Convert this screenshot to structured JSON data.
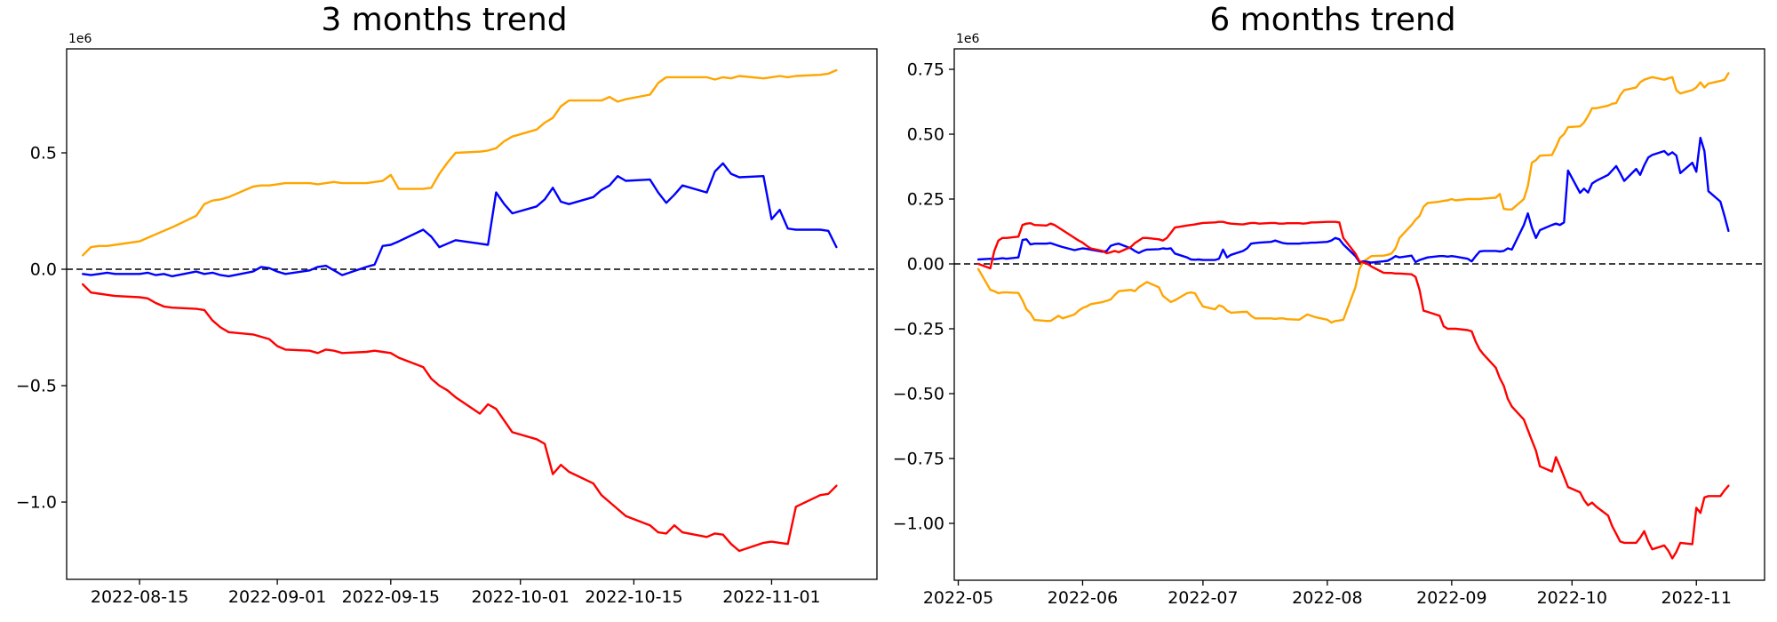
{
  "figure": {
    "background": "#ffffff",
    "text_color": "#000000",
    "axis_color": "#000000"
  },
  "chart_data": [
    {
      "type": "line",
      "title": "3 months trend",
      "xlabel": "",
      "ylabel": "",
      "y_offset_label": "1e6",
      "y_unit_multiplier": 1000000,
      "grid": false,
      "legend_position": "none",
      "zero_line": true,
      "zero_line_style": "dashed-black",
      "xlim": [
        "2022-08-06",
        "2022-11-14"
      ],
      "ylim": [
        -1.332,
        0.9466
      ],
      "x_ticks": [
        {
          "d": "2022-08-15",
          "label": "2022-08-15"
        },
        {
          "d": "2022-09-01",
          "label": "2022-09-01"
        },
        {
          "d": "2022-09-15",
          "label": "2022-09-15"
        },
        {
          "d": "2022-10-01",
          "label": "2022-10-01"
        },
        {
          "d": "2022-10-15",
          "label": "2022-10-15"
        },
        {
          "d": "2022-11-01",
          "label": "2022-11-01"
        }
      ],
      "y_ticks": [
        {
          "v": 0.5,
          "label": "0.5"
        },
        {
          "v": 0.0,
          "label": "0.0"
        },
        {
          "v": -0.5,
          "label": "−0.5"
        },
        {
          "v": -1.0,
          "label": "−1.0"
        }
      ],
      "x": [
        "2022-08-08",
        "2022-08-09",
        "2022-08-10",
        "2022-08-11",
        "2022-08-12",
        "2022-08-15",
        "2022-08-16",
        "2022-08-17",
        "2022-08-18",
        "2022-08-19",
        "2022-08-22",
        "2022-08-23",
        "2022-08-24",
        "2022-08-25",
        "2022-08-26",
        "2022-08-29",
        "2022-08-30",
        "2022-08-31",
        "2022-09-01",
        "2022-09-02",
        "2022-09-05",
        "2022-09-06",
        "2022-09-07",
        "2022-09-08",
        "2022-09-09",
        "2022-09-12",
        "2022-09-13",
        "2022-09-14",
        "2022-09-15",
        "2022-09-16",
        "2022-09-19",
        "2022-09-20",
        "2022-09-21",
        "2022-09-22",
        "2022-09-23",
        "2022-09-26",
        "2022-09-27",
        "2022-09-28",
        "2022-09-29",
        "2022-09-30",
        "2022-10-03",
        "2022-10-04",
        "2022-10-05",
        "2022-10-06",
        "2022-10-07",
        "2022-10-10",
        "2022-10-11",
        "2022-10-12",
        "2022-10-13",
        "2022-10-14",
        "2022-10-17",
        "2022-10-18",
        "2022-10-19",
        "2022-10-20",
        "2022-10-21",
        "2022-10-24",
        "2022-10-25",
        "2022-10-26",
        "2022-10-27",
        "2022-10-28",
        "2022-10-31",
        "2022-11-01",
        "2022-11-02",
        "2022-11-03",
        "2022-11-04",
        "2022-11-07",
        "2022-11-08",
        "2022-11-09"
      ],
      "series": [
        {
          "name": "orange",
          "color": "#ffa500",
          "values": [
            0.06,
            0.095,
            0.1,
            0.1,
            0.105,
            0.12,
            0.135,
            0.15,
            0.165,
            0.18,
            0.23,
            0.28,
            0.295,
            0.3,
            0.31,
            0.355,
            0.36,
            0.36,
            0.365,
            0.37,
            0.37,
            0.365,
            0.37,
            0.375,
            0.37,
            0.37,
            0.375,
            0.38,
            0.405,
            0.345,
            0.345,
            0.35,
            0.41,
            0.458,
            0.5,
            0.505,
            0.51,
            0.52,
            0.55,
            0.57,
            0.6,
            0.63,
            0.65,
            0.7,
            0.725,
            0.725,
            0.725,
            0.74,
            0.72,
            0.73,
            0.75,
            0.8,
            0.825,
            0.825,
            0.825,
            0.825,
            0.815,
            0.825,
            0.82,
            0.83,
            0.82,
            0.825,
            0.83,
            0.825,
            0.83,
            0.835,
            0.84,
            0.855
          ]
        },
        {
          "name": "blue",
          "color": "#0000ff",
          "values": [
            -0.02,
            -0.025,
            -0.02,
            -0.015,
            -0.02,
            -0.02,
            -0.015,
            -0.025,
            -0.02,
            -0.03,
            -0.01,
            -0.02,
            -0.015,
            -0.025,
            -0.03,
            -0.01,
            0.01,
            0.005,
            -0.01,
            -0.02,
            -0.005,
            0.01,
            0.015,
            -0.005,
            -0.025,
            0.01,
            0.02,
            0.1,
            0.105,
            0.12,
            0.17,
            0.14,
            0.095,
            0.11,
            0.125,
            0.11,
            0.105,
            0.33,
            0.28,
            0.24,
            0.27,
            0.3,
            0.35,
            0.29,
            0.28,
            0.31,
            0.34,
            0.36,
            0.4,
            0.38,
            0.385,
            0.33,
            0.285,
            0.32,
            0.36,
            0.33,
            0.42,
            0.455,
            0.41,
            0.395,
            0.4,
            0.215,
            0.255,
            0.175,
            0.17,
            0.17,
            0.165,
            0.095
          ]
        },
        {
          "name": "red",
          "color": "#ff0000",
          "values": [
            -0.065,
            -0.1,
            -0.105,
            -0.11,
            -0.115,
            -0.12,
            -0.125,
            -0.145,
            -0.16,
            -0.165,
            -0.17,
            -0.175,
            -0.22,
            -0.25,
            -0.27,
            -0.28,
            -0.29,
            -0.3,
            -0.33,
            -0.345,
            -0.35,
            -0.36,
            -0.345,
            -0.35,
            -0.36,
            -0.355,
            -0.35,
            -0.355,
            -0.36,
            -0.38,
            -0.42,
            -0.47,
            -0.5,
            -0.52,
            -0.55,
            -0.62,
            -0.58,
            -0.6,
            -0.65,
            -0.7,
            -0.73,
            -0.75,
            -0.88,
            -0.84,
            -0.87,
            -0.92,
            -0.97,
            -1.0,
            -1.03,
            -1.06,
            -1.1,
            -1.13,
            -1.135,
            -1.1,
            -1.13,
            -1.15,
            -1.135,
            -1.14,
            -1.18,
            -1.21,
            -1.175,
            -1.17,
            -1.175,
            -1.18,
            -1.02,
            -0.97,
            -0.965,
            -0.93
          ]
        }
      ]
    },
    {
      "type": "line",
      "title": "6 months trend",
      "xlabel": "",
      "ylabel": "",
      "y_offset_label": "1e6",
      "y_unit_multiplier": 1000000,
      "grid": false,
      "legend_position": "none",
      "zero_line": true,
      "zero_line_style": "dashed-black",
      "xlim": [
        "2022-04-30",
        "2022-11-18"
      ],
      "ylim": [
        -1.2192,
        0.8288
      ],
      "x_ticks": [
        {
          "d": "2022-05-01",
          "label": "2022-05"
        },
        {
          "d": "2022-06-01",
          "label": "2022-06"
        },
        {
          "d": "2022-07-01",
          "label": "2022-07"
        },
        {
          "d": "2022-08-01",
          "label": "2022-08"
        },
        {
          "d": "2022-09-01",
          "label": "2022-09"
        },
        {
          "d": "2022-10-01",
          "label": "2022-10"
        },
        {
          "d": "2022-11-01",
          "label": "2022-11"
        }
      ],
      "y_ticks": [
        {
          "v": 0.75,
          "label": "0.75"
        },
        {
          "v": 0.5,
          "label": "0.50"
        },
        {
          "v": 0.25,
          "label": "0.25"
        },
        {
          "v": 0.0,
          "label": "0.00"
        },
        {
          "v": -0.25,
          "label": "−0.25"
        },
        {
          "v": -0.5,
          "label": "−0.50"
        },
        {
          "v": -0.75,
          "label": "−0.75"
        },
        {
          "v": -1.0,
          "label": "−1.00"
        }
      ],
      "x": [
        "2022-05-06",
        "2022-05-09",
        "2022-05-10",
        "2022-05-11",
        "2022-05-12",
        "2022-05-13",
        "2022-05-16",
        "2022-05-17",
        "2022-05-18",
        "2022-05-19",
        "2022-05-20",
        "2022-05-23",
        "2022-05-24",
        "2022-05-25",
        "2022-05-26",
        "2022-05-27",
        "2022-05-30",
        "2022-05-31",
        "2022-06-01",
        "2022-06-02",
        "2022-06-03",
        "2022-06-06",
        "2022-06-07",
        "2022-06-08",
        "2022-06-09",
        "2022-06-10",
        "2022-06-13",
        "2022-06-14",
        "2022-06-15",
        "2022-06-16",
        "2022-06-17",
        "2022-06-20",
        "2022-06-21",
        "2022-06-22",
        "2022-06-23",
        "2022-06-24",
        "2022-06-27",
        "2022-06-28",
        "2022-06-29",
        "2022-06-30",
        "2022-07-01",
        "2022-07-04",
        "2022-07-05",
        "2022-07-06",
        "2022-07-07",
        "2022-07-08",
        "2022-07-11",
        "2022-07-12",
        "2022-07-13",
        "2022-07-14",
        "2022-07-15",
        "2022-07-18",
        "2022-07-19",
        "2022-07-20",
        "2022-07-21",
        "2022-07-22",
        "2022-07-25",
        "2022-07-26",
        "2022-07-27",
        "2022-07-28",
        "2022-07-29",
        "2022-08-01",
        "2022-08-02",
        "2022-08-03",
        "2022-08-04",
        "2022-08-05",
        "2022-08-08",
        "2022-08-09",
        "2022-08-10",
        "2022-08-11",
        "2022-08-12",
        "2022-08-15",
        "2022-08-16",
        "2022-08-17",
        "2022-08-18",
        "2022-08-19",
        "2022-08-22",
        "2022-08-23",
        "2022-08-24",
        "2022-08-25",
        "2022-08-26",
        "2022-08-29",
        "2022-08-30",
        "2022-08-31",
        "2022-09-01",
        "2022-09-02",
        "2022-09-05",
        "2022-09-06",
        "2022-09-07",
        "2022-09-08",
        "2022-09-09",
        "2022-09-12",
        "2022-09-13",
        "2022-09-14",
        "2022-09-15",
        "2022-09-16",
        "2022-09-19",
        "2022-09-20",
        "2022-09-21",
        "2022-09-22",
        "2022-09-23",
        "2022-09-26",
        "2022-09-27",
        "2022-09-28",
        "2022-09-29",
        "2022-09-30",
        "2022-10-03",
        "2022-10-04",
        "2022-10-05",
        "2022-10-06",
        "2022-10-07",
        "2022-10-10",
        "2022-10-11",
        "2022-10-12",
        "2022-10-13",
        "2022-10-14",
        "2022-10-17",
        "2022-10-18",
        "2022-10-19",
        "2022-10-20",
        "2022-10-21",
        "2022-10-24",
        "2022-10-25",
        "2022-10-26",
        "2022-10-27",
        "2022-10-28",
        "2022-10-31",
        "2022-11-01",
        "2022-11-02",
        "2022-11-03",
        "2022-11-04",
        "2022-11-07",
        "2022-11-08",
        "2022-11-09"
      ],
      "series": [
        {
          "name": "orange",
          "color": "#ffa500",
          "values": [
            -0.02,
            -0.1,
            -0.105,
            -0.113,
            -0.11,
            -0.11,
            -0.112,
            -0.14,
            -0.175,
            -0.19,
            -0.216,
            -0.22,
            -0.22,
            -0.21,
            -0.2,
            -0.21,
            -0.195,
            -0.18,
            -0.17,
            -0.164,
            -0.155,
            -0.147,
            -0.142,
            -0.137,
            -0.12,
            -0.105,
            -0.1,
            -0.105,
            -0.09,
            -0.08,
            -0.07,
            -0.09,
            -0.123,
            -0.135,
            -0.147,
            -0.14,
            -0.113,
            -0.11,
            -0.113,
            -0.14,
            -0.164,
            -0.175,
            -0.16,
            -0.165,
            -0.18,
            -0.188,
            -0.185,
            -0.185,
            -0.2,
            -0.21,
            -0.21,
            -0.21,
            -0.212,
            -0.21,
            -0.21,
            -0.213,
            -0.215,
            -0.205,
            -0.195,
            -0.2,
            -0.205,
            -0.215,
            -0.226,
            -0.22,
            -0.218,
            -0.215,
            -0.09,
            -0.02,
            0.01,
            0.02,
            0.03,
            0.032,
            0.035,
            0.04,
            0.06,
            0.1,
            0.15,
            0.17,
            0.185,
            0.22,
            0.235,
            0.24,
            0.243,
            0.245,
            0.25,
            0.245,
            0.25,
            0.25,
            0.25,
            0.25,
            0.252,
            0.255,
            0.27,
            0.212,
            0.21,
            0.21,
            0.25,
            0.3,
            0.39,
            0.4,
            0.417,
            0.42,
            0.45,
            0.486,
            0.5,
            0.527,
            0.53,
            0.545,
            0.57,
            0.6,
            0.6,
            0.61,
            0.617,
            0.62,
            0.65,
            0.67,
            0.68,
            0.7,
            0.71,
            0.715,
            0.72,
            0.71,
            0.715,
            0.72,
            0.67,
            0.657,
            0.67,
            0.68,
            0.7,
            0.68,
            0.695,
            0.705,
            0.71,
            0.735
          ]
        },
        {
          "name": "blue",
          "color": "#0000ff",
          "values": [
            0.017,
            0.02,
            0.018,
            0.02,
            0.022,
            0.02,
            0.025,
            0.092,
            0.095,
            0.075,
            0.078,
            0.078,
            0.08,
            0.075,
            0.07,
            0.065,
            0.053,
            0.057,
            0.06,
            0.058,
            0.055,
            0.047,
            0.05,
            0.07,
            0.075,
            0.078,
            0.06,
            0.05,
            0.042,
            0.05,
            0.055,
            0.057,
            0.06,
            0.058,
            0.06,
            0.04,
            0.025,
            0.017,
            0.016,
            0.017,
            0.015,
            0.015,
            0.02,
            0.055,
            0.025,
            0.035,
            0.05,
            0.06,
            0.078,
            0.08,
            0.082,
            0.085,
            0.09,
            0.085,
            0.08,
            0.078,
            0.078,
            0.08,
            0.08,
            0.082,
            0.082,
            0.085,
            0.09,
            0.1,
            0.095,
            0.075,
            0.03,
            0.007,
            0.01,
            0.008,
            0.005,
            0.01,
            0.012,
            0.02,
            0.03,
            0.025,
            0.032,
            0.007,
            0.015,
            0.02,
            0.025,
            0.03,
            0.03,
            0.028,
            0.03,
            0.028,
            0.02,
            0.01,
            0.03,
            0.048,
            0.05,
            0.05,
            0.048,
            0.05,
            0.06,
            0.055,
            0.15,
            0.195,
            0.14,
            0.1,
            0.13,
            0.15,
            0.155,
            0.15,
            0.16,
            0.36,
            0.274,
            0.29,
            0.275,
            0.31,
            0.32,
            0.343,
            0.36,
            0.377,
            0.35,
            0.32,
            0.366,
            0.343,
            0.38,
            0.41,
            0.42,
            0.435,
            0.42,
            0.43,
            0.418,
            0.35,
            0.39,
            0.355,
            0.486,
            0.435,
            0.28,
            0.24,
            0.185,
            0.127
          ]
        },
        {
          "name": "red",
          "color": "#ff0000",
          "values": [
            0.0,
            -0.017,
            0.05,
            0.09,
            0.1,
            0.1,
            0.105,
            0.15,
            0.155,
            0.157,
            0.15,
            0.148,
            0.155,
            0.15,
            0.14,
            0.13,
            0.1,
            0.09,
            0.082,
            0.07,
            0.06,
            0.05,
            0.041,
            0.045,
            0.05,
            0.045,
            0.065,
            0.08,
            0.09,
            0.1,
            0.1,
            0.095,
            0.09,
            0.1,
            0.12,
            0.14,
            0.148,
            0.15,
            0.152,
            0.155,
            0.158,
            0.16,
            0.162,
            0.162,
            0.158,
            0.155,
            0.152,
            0.155,
            0.158,
            0.158,
            0.155,
            0.158,
            0.158,
            0.155,
            0.155,
            0.157,
            0.157,
            0.155,
            0.157,
            0.16,
            0.16,
            0.162,
            0.162,
            0.162,
            0.16,
            0.1,
            0.04,
            0.01,
            0.005,
            0.0,
            -0.01,
            -0.034,
            -0.035,
            -0.035,
            -0.037,
            -0.037,
            -0.04,
            -0.05,
            -0.1,
            -0.18,
            -0.185,
            -0.2,
            -0.24,
            -0.25,
            -0.25,
            -0.25,
            -0.255,
            -0.26,
            -0.3,
            -0.33,
            -0.35,
            -0.4,
            -0.44,
            -0.47,
            -0.52,
            -0.55,
            -0.6,
            -0.64,
            -0.68,
            -0.72,
            -0.78,
            -0.8,
            -0.745,
            -0.78,
            -0.82,
            -0.86,
            -0.88,
            -0.91,
            -0.93,
            -0.92,
            -0.935,
            -0.97,
            -1.01,
            -1.04,
            -1.07,
            -1.075,
            -1.075,
            -1.055,
            -1.03,
            -1.07,
            -1.1,
            -1.085,
            -1.105,
            -1.135,
            -1.11,
            -1.075,
            -1.08,
            -0.94,
            -0.96,
            -0.9,
            -0.895,
            -0.895,
            -0.873,
            -0.855
          ]
        }
      ]
    }
  ]
}
